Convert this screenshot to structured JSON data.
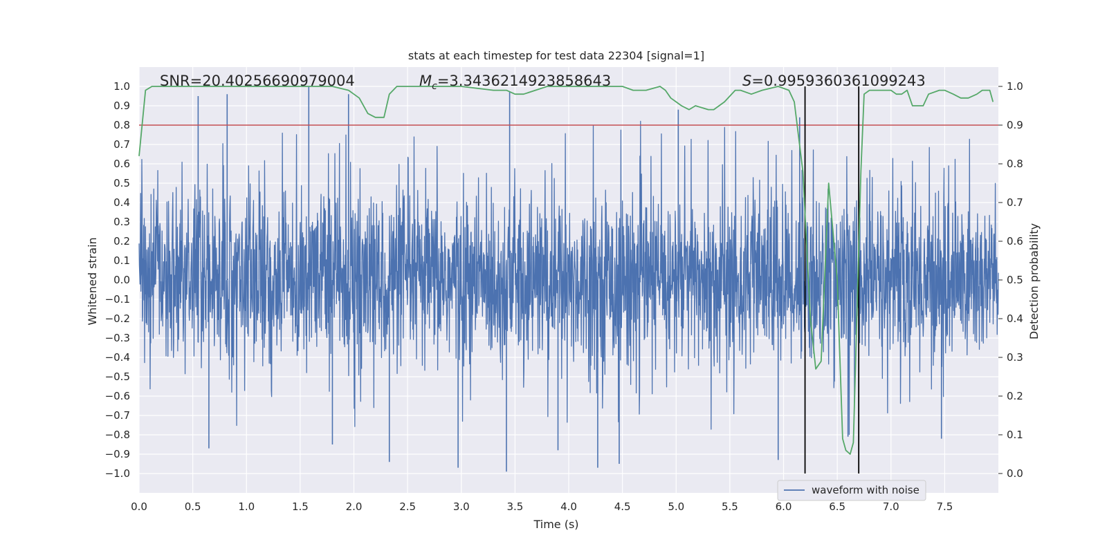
{
  "chart_data": {
    "type": "line",
    "title": "stats at each timestep for test data 22304 [signal=1]",
    "xlabel": "Time (s)",
    "ylabel": "Whitened strain",
    "y2label": "Detection probability",
    "xlim": [
      0.0,
      8.0
    ],
    "ylim": [
      -1.1,
      1.1
    ],
    "y2lim": [
      -0.05,
      1.05
    ],
    "xticks": [
      0.0,
      0.5,
      1.0,
      1.5,
      2.0,
      2.5,
      3.0,
      3.5,
      4.0,
      4.5,
      5.0,
      5.5,
      6.0,
      6.5,
      7.0,
      7.5
    ],
    "xtick_labels": [
      "0.0",
      "0.5",
      "1.0",
      "1.5",
      "2.0",
      "2.5",
      "3.0",
      "3.5",
      "4.0",
      "4.5",
      "5.0",
      "5.5",
      "6.0",
      "6.5",
      "7.0",
      "7.5"
    ],
    "yticks": [
      1.0,
      0.9,
      0.8,
      0.7,
      0.6,
      0.5,
      0.4,
      0.3,
      0.2,
      0.1,
      0.0,
      -0.1,
      -0.2,
      -0.3,
      -0.4,
      -0.5,
      -0.6,
      -0.7,
      -0.8,
      -0.9,
      -1.0
    ],
    "ytick_labels": [
      "1.0",
      "0.9",
      "0.8",
      "0.7",
      "0.6",
      "0.5",
      "0.4",
      "0.3",
      "0.2",
      "0.1",
      "0.0",
      "−0.1",
      "−0.2",
      "−0.3",
      "−0.4",
      "−0.5",
      "−0.6",
      "−0.7",
      "−0.8",
      "−0.9",
      "−1.0"
    ],
    "y2ticks": [
      1.0,
      0.9,
      0.8,
      0.7,
      0.6,
      0.5,
      0.4,
      0.3,
      0.2,
      0.1,
      0.0
    ],
    "y2tick_labels": [
      "1.0",
      "0.9",
      "0.8",
      "0.7",
      "0.6",
      "0.5",
      "0.4",
      "0.3",
      "0.2",
      "0.1",
      "0.0"
    ],
    "grid": true,
    "legend": {
      "placement": "lower-center-right",
      "entries": [
        "waveform with noise"
      ]
    },
    "annotations": {
      "snr": "SNR=20.40256690979004",
      "mc_symbol": "M",
      "mc_sub": "c",
      "mc_value": "=3.3436214923858643",
      "s_symbol": "S",
      "s_value": "=0.9959360361099243"
    },
    "series": [
      {
        "name": "waveform with noise",
        "axis": "left",
        "color": "#4c72b0",
        "style": "dense noisy strain trace, bulk roughly within ±0.4 with spikes",
        "x_range": [
          0.0,
          8.0
        ],
        "typical_amplitude": 0.4,
        "spikes": [
          {
            "x": 0.55,
            "y": 0.95
          },
          {
            "x": 0.82,
            "y": 0.96
          },
          {
            "x": 1.58,
            "y": 1.0
          },
          {
            "x": 1.95,
            "y": 0.96
          },
          {
            "x": 3.45,
            "y": 0.97
          },
          {
            "x": 5.02,
            "y": 0.88
          },
          {
            "x": 6.15,
            "y": 0.84
          },
          {
            "x": 3.42,
            "y": -0.99
          },
          {
            "x": 2.97,
            "y": -0.97
          },
          {
            "x": 4.27,
            "y": -0.97
          },
          {
            "x": 4.47,
            "y": -0.95
          },
          {
            "x": 3.9,
            "y": -0.88
          },
          {
            "x": 0.65,
            "y": -0.87
          },
          {
            "x": 1.8,
            "y": -0.85
          },
          {
            "x": 2.33,
            "y": -0.94
          },
          {
            "x": 5.95,
            "y": -0.93
          },
          {
            "x": 6.6,
            "y": -0.81
          },
          {
            "x": 7.47,
            "y": -0.82
          }
        ]
      },
      {
        "name": "detection probability",
        "axis": "right",
        "color": "#55a868",
        "x": [
          0.0,
          0.06,
          0.12,
          0.3,
          0.6,
          1.0,
          1.5,
          1.8,
          1.95,
          2.05,
          2.13,
          2.2,
          2.28,
          2.33,
          2.4,
          2.6,
          3.0,
          3.3,
          3.42,
          3.5,
          3.58,
          3.8,
          4.0,
          4.3,
          4.5,
          4.6,
          4.72,
          4.85,
          4.9,
          4.95,
          5.0,
          5.05,
          5.12,
          5.18,
          5.3,
          5.35,
          5.45,
          5.55,
          5.6,
          5.7,
          5.8,
          5.95,
          6.05,
          6.1,
          6.18,
          6.25,
          6.3,
          6.35,
          6.42,
          6.5,
          6.55,
          6.58,
          6.62,
          6.65,
          6.72,
          6.75,
          6.8,
          6.9,
          7.0,
          7.05,
          7.1,
          7.15,
          7.2,
          7.25,
          7.3,
          7.35,
          7.45,
          7.5,
          7.58,
          7.65,
          7.72,
          7.8,
          7.85,
          7.92,
          7.95
        ],
        "values": [
          0.82,
          0.99,
          1.0,
          1.0,
          1.0,
          1.0,
          1.0,
          1.0,
          0.99,
          0.97,
          0.93,
          0.92,
          0.92,
          0.98,
          1.0,
          1.0,
          1.0,
          0.99,
          0.99,
          0.98,
          0.98,
          1.0,
          1.0,
          1.0,
          1.0,
          0.99,
          0.99,
          1.0,
          0.99,
          0.97,
          0.96,
          0.95,
          0.94,
          0.95,
          0.94,
          0.94,
          0.96,
          0.99,
          0.99,
          0.98,
          0.99,
          1.0,
          0.99,
          0.96,
          0.78,
          0.4,
          0.27,
          0.29,
          0.75,
          0.5,
          0.09,
          0.06,
          0.05,
          0.08,
          0.78,
          0.98,
          0.99,
          0.99,
          0.99,
          0.98,
          0.98,
          0.99,
          0.95,
          0.95,
          0.95,
          0.98,
          0.99,
          0.99,
          0.98,
          0.97,
          0.97,
          0.98,
          0.99,
          0.99,
          0.96
        ]
      }
    ],
    "threshold_line": {
      "axis": "right",
      "value": 0.9,
      "color": "#c44e52"
    },
    "vertical_lines": [
      6.2,
      6.7
    ],
    "vertical_line_range_y2": [
      0.0,
      1.0
    ]
  }
}
